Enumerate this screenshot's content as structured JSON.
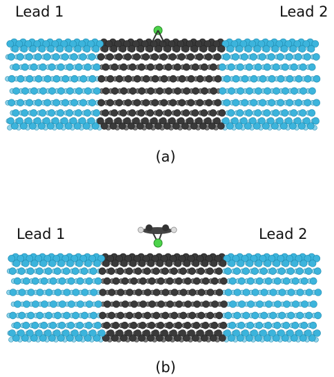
{
  "panels": [
    {
      "left_label": "Lead 1",
      "right_label": "Lead 2",
      "caption": "(a)"
    },
    {
      "left_label": "Lead 1",
      "right_label": "Lead 2",
      "caption": "(b)"
    }
  ]
}
